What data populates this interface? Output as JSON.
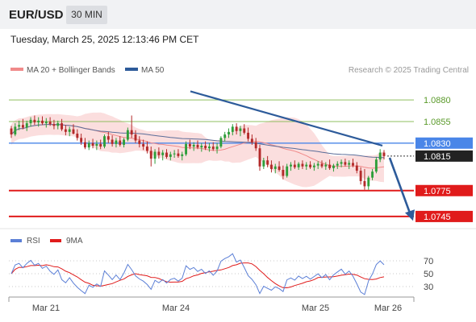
{
  "header": {
    "symbol": "EUR/USD",
    "timeframe": "30 MIN"
  },
  "datetime": "Tuesday, March 25, 2025 12:13:46 PM CET",
  "legend": {
    "items": [
      {
        "name": "MA 20 + Bollinger Bands",
        "color": "#f08a8a"
      },
      {
        "name": "MA 50",
        "color": "#2d5b9a"
      }
    ],
    "credit": "Research © 2025 Trading Central"
  },
  "rsi_legend": {
    "items": [
      {
        "name": "RSI",
        "color": "#5b7fd6"
      },
      {
        "name": "9MA",
        "color": "#e01b1b"
      }
    ]
  },
  "colors": {
    "up": "#2e9e3a",
    "down": "#b32a2a",
    "resistance": "#8fbf5f",
    "support": "#e01b1b",
    "pivot": "#4a86e8",
    "trend": "#2d5b9a",
    "band": "#fbdede"
  },
  "chart_data": [
    {
      "type": "candlestick",
      "y_domain": [
        1.073,
        1.091
      ],
      "price_levels": [
        {
          "value": 1.088,
          "label": "1.0880",
          "role": "resistance"
        },
        {
          "value": 1.0855,
          "label": "1.0855",
          "role": "resistance"
        },
        {
          "value": 1.083,
          "label": "1.0830",
          "role": "pivot"
        },
        {
          "value": 1.0815,
          "label": "1.0815",
          "role": "current"
        },
        {
          "value": 1.0775,
          "label": "1.0775",
          "role": "support"
        },
        {
          "value": 1.0745,
          "label": "1.0745",
          "role": "support"
        }
      ],
      "x_labels": [
        "Mar 21",
        "Mar 24",
        "Mar 25",
        "Mar 26"
      ],
      "trendline": [
        1.089,
        1.0827
      ],
      "forecast": [
        1.0813,
        1.074
      ],
      "candles": [
        [
          1.0847,
          1.085,
          1.0836,
          1.084
        ],
        [
          1.084,
          1.0853,
          1.0838,
          1.0849
        ],
        [
          1.0849,
          1.0856,
          1.0845,
          1.0851
        ],
        [
          1.0851,
          1.0858,
          1.0846,
          1.0848
        ],
        [
          1.0848,
          1.0856,
          1.0844,
          1.0853
        ],
        [
          1.0853,
          1.086,
          1.0849,
          1.0857
        ],
        [
          1.0857,
          1.0862,
          1.0851,
          1.0854
        ],
        [
          1.0854,
          1.086,
          1.0849,
          1.0856
        ],
        [
          1.0856,
          1.0861,
          1.0851,
          1.0853
        ],
        [
          1.0853,
          1.0859,
          1.0848,
          1.0855
        ],
        [
          1.0855,
          1.086,
          1.085,
          1.0852
        ],
        [
          1.0852,
          1.0857,
          1.0846,
          1.085
        ],
        [
          1.085,
          1.0856,
          1.0846,
          1.0853
        ],
        [
          1.0853,
          1.0858,
          1.0844,
          1.0846
        ],
        [
          1.0846,
          1.0851,
          1.0839,
          1.0843
        ],
        [
          1.0843,
          1.0849,
          1.0838,
          1.0846
        ],
        [
          1.0846,
          1.0852,
          1.084,
          1.0841
        ],
        [
          1.0841,
          1.0846,
          1.0833,
          1.0836
        ],
        [
          1.0836,
          1.0841,
          1.0828,
          1.0831
        ],
        [
          1.0831,
          1.0836,
          1.0823,
          1.0825
        ],
        [
          1.0825,
          1.0833,
          1.0822,
          1.083
        ],
        [
          1.083,
          1.0835,
          1.0824,
          1.0827
        ],
        [
          1.0827,
          1.0833,
          1.0822,
          1.0829
        ],
        [
          1.0829,
          1.0834,
          1.0823,
          1.0826
        ],
        [
          1.0826,
          1.084,
          1.0824,
          1.0838
        ],
        [
          1.0838,
          1.0843,
          1.083,
          1.0834
        ],
        [
          1.0834,
          1.0839,
          1.0826,
          1.0829
        ],
        [
          1.0829,
          1.0836,
          1.0825,
          1.0833
        ],
        [
          1.0833,
          1.0838,
          1.0826,
          1.0828
        ],
        [
          1.0828,
          1.0836,
          1.0825,
          1.0834
        ],
        [
          1.0834,
          1.0848,
          1.0832,
          1.0845
        ],
        [
          1.0845,
          1.0862,
          1.0836,
          1.084
        ],
        [
          1.084,
          1.0845,
          1.083,
          1.0833
        ],
        [
          1.0833,
          1.0838,
          1.0825,
          1.0829
        ],
        [
          1.0829,
          1.0834,
          1.0822,
          1.0826
        ],
        [
          1.0826,
          1.0832,
          1.0818,
          1.0821
        ],
        [
          1.0821,
          1.0826,
          1.0803,
          1.0812
        ],
        [
          1.0812,
          1.0823,
          1.0806,
          1.082
        ],
        [
          1.082,
          1.0825,
          1.0812,
          1.0816
        ],
        [
          1.0816,
          1.0822,
          1.081,
          1.0819
        ],
        [
          1.0819,
          1.0823,
          1.0812,
          1.0814
        ],
        [
          1.0814,
          1.082,
          1.081,
          1.0817
        ],
        [
          1.0817,
          1.0822,
          1.0813,
          1.0818
        ],
        [
          1.0818,
          1.0823,
          1.0813,
          1.0815
        ],
        [
          1.0815,
          1.082,
          1.081,
          1.0817
        ],
        [
          1.0817,
          1.0832,
          1.0815,
          1.0829
        ],
        [
          1.0829,
          1.0834,
          1.0823,
          1.0826
        ],
        [
          1.0826,
          1.0831,
          1.0821,
          1.0828
        ],
        [
          1.0828,
          1.0833,
          1.0823,
          1.0825
        ],
        [
          1.0825,
          1.083,
          1.082,
          1.0827
        ],
        [
          1.0827,
          1.0832,
          1.0822,
          1.0824
        ],
        [
          1.0824,
          1.083,
          1.082,
          1.0826
        ],
        [
          1.0826,
          1.0831,
          1.0821,
          1.0823
        ],
        [
          1.0823,
          1.083,
          1.0818,
          1.0826
        ],
        [
          1.0826,
          1.0838,
          1.0824,
          1.0836
        ],
        [
          1.0836,
          1.0843,
          1.0832,
          1.084
        ],
        [
          1.084,
          1.0847,
          1.0836,
          1.0843
        ],
        [
          1.0843,
          1.0852,
          1.0839,
          1.0849
        ],
        [
          1.0849,
          1.0853,
          1.084,
          1.0844
        ],
        [
          1.0844,
          1.085,
          1.0838,
          1.0847
        ],
        [
          1.0847,
          1.0852,
          1.084,
          1.0842
        ],
        [
          1.0842,
          1.0848,
          1.0832,
          1.0835
        ],
        [
          1.0835,
          1.084,
          1.0828,
          1.0831
        ],
        [
          1.0831,
          1.0836,
          1.0821,
          1.0824
        ],
        [
          1.0824,
          1.0828,
          1.0798,
          1.0803
        ],
        [
          1.0803,
          1.0813,
          1.08,
          1.081
        ],
        [
          1.081,
          1.0815,
          1.0802,
          1.0805
        ],
        [
          1.0805,
          1.081,
          1.0796,
          1.08
        ],
        [
          1.08,
          1.0806,
          1.0795,
          1.0803
        ],
        [
          1.0803,
          1.0809,
          1.0797,
          1.0799
        ],
        [
          1.0799,
          1.0804,
          1.0788,
          1.0792
        ],
        [
          1.0792,
          1.0806,
          1.079,
          1.0803
        ],
        [
          1.0803,
          1.0808,
          1.0798,
          1.0805
        ],
        [
          1.0805,
          1.081,
          1.08,
          1.0802
        ],
        [
          1.0802,
          1.0808,
          1.0799,
          1.0806
        ],
        [
          1.0806,
          1.081,
          1.08,
          1.0803
        ],
        [
          1.0803,
          1.0808,
          1.0799,
          1.0805
        ],
        [
          1.0805,
          1.0809,
          1.08,
          1.0802
        ],
        [
          1.0802,
          1.0807,
          1.0798,
          1.0804
        ],
        [
          1.0804,
          1.0809,
          1.08,
          1.0806
        ],
        [
          1.0806,
          1.081,
          1.0801,
          1.0803
        ],
        [
          1.0803,
          1.0808,
          1.0799,
          1.0805
        ],
        [
          1.0805,
          1.0811,
          1.0799,
          1.0801
        ],
        [
          1.0801,
          1.0806,
          1.0797,
          1.0804
        ],
        [
          1.0804,
          1.0809,
          1.08,
          1.0806
        ],
        [
          1.0806,
          1.0811,
          1.0802,
          1.0808
        ],
        [
          1.0808,
          1.0812,
          1.0803,
          1.0805
        ],
        [
          1.0805,
          1.081,
          1.08,
          1.0807
        ],
        [
          1.0807,
          1.0812,
          1.0802,
          1.0804
        ],
        [
          1.0804,
          1.0808,
          1.0795,
          1.0798
        ],
        [
          1.0798,
          1.0802,
          1.0782,
          1.0786
        ],
        [
          1.0786,
          1.08,
          1.0776,
          1.078
        ],
        [
          1.078,
          1.0792,
          1.0776,
          1.079
        ],
        [
          1.079,
          1.08,
          1.0787,
          1.0797
        ],
        [
          1.0797,
          1.0814,
          1.0795,
          1.0811
        ],
        [
          1.0811,
          1.0823,
          1.0808,
          1.0819
        ],
        [
          1.0819,
          1.0822,
          1.0811,
          1.0815
        ]
      ]
    },
    {
      "type": "line",
      "title": "RSI",
      "series": [
        {
          "name": "RSI",
          "color": "#5b7fd6"
        },
        {
          "name": "9MA",
          "color": "#e01b1b"
        }
      ],
      "y_ticks": [
        70,
        50,
        30
      ],
      "ylim": [
        15,
        85
      ]
    }
  ]
}
